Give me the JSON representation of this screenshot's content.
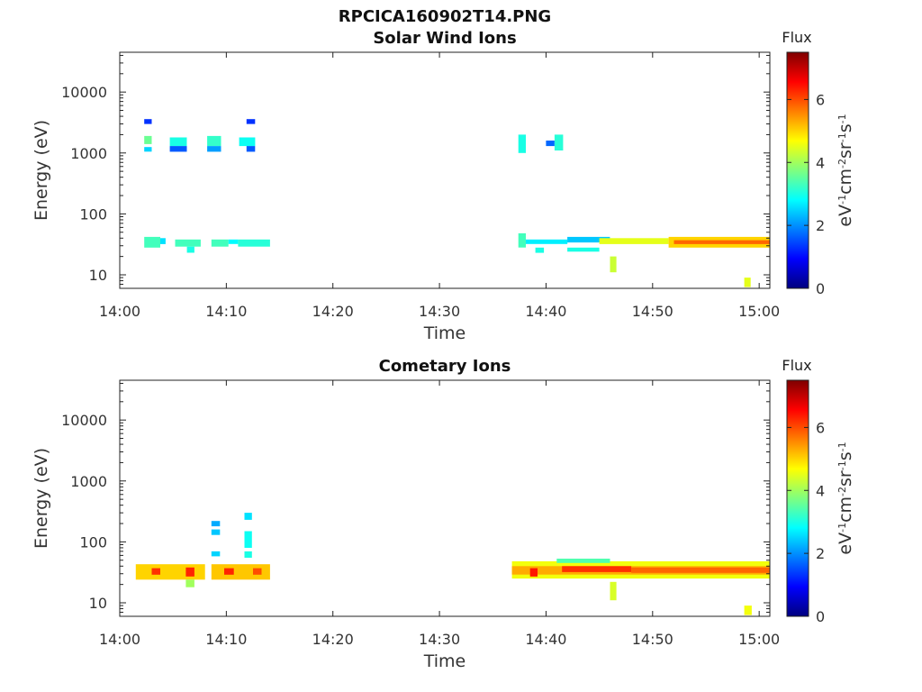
{
  "figure_title": "RPCICA160902T14.PNG",
  "colormap": [
    "#00007f",
    "#0000ff",
    "#007fff",
    "#00ffff",
    "#7fff7f",
    "#ffff00",
    "#ff7f00",
    "#ff0000",
    "#7f0000"
  ],
  "chart_data": [
    {
      "type": "heatmap",
      "title": "Solar Wind Ions",
      "xlabel": "Time",
      "ylabel": "Energy (eV)",
      "x_ticks": [
        "14:00",
        "14:10",
        "14:20",
        "14:30",
        "14:40",
        "14:50",
        "15:00"
      ],
      "x_range_minutes": [
        0,
        61
      ],
      "y_scale": "log",
      "y_ticks": [
        "10",
        "100",
        "1000",
        "10000"
      ],
      "y_range": [
        6,
        45000
      ],
      "colorbar": {
        "title": "Flux",
        "label": "eV-1cm-2sr-1s-1",
        "ticks": [
          "0",
          "2",
          "4",
          "6"
        ],
        "range": [
          0,
          7.5
        ]
      },
      "cells": [
        {
          "t0": 2.3,
          "t1": 3.0,
          "e0": 3000,
          "e1": 3600,
          "v": 1.3
        },
        {
          "t0": 2.3,
          "t1": 3.0,
          "e0": 1400,
          "e1": 1900,
          "v": 3.6
        },
        {
          "t0": 2.3,
          "t1": 3.0,
          "e0": 1050,
          "e1": 1250,
          "v": 2.5
        },
        {
          "t0": 4.7,
          "t1": 6.3,
          "e0": 1300,
          "e1": 1800,
          "v": 3.0
        },
        {
          "t0": 4.7,
          "t1": 6.3,
          "e0": 1050,
          "e1": 1300,
          "v": 1.6
        },
        {
          "t0": 8.2,
          "t1": 9.5,
          "e0": 1300,
          "e1": 1900,
          "v": 3.2
        },
        {
          "t0": 8.2,
          "t1": 9.5,
          "e0": 1050,
          "e1": 1300,
          "v": 2.1
        },
        {
          "t0": 11.2,
          "t1": 12.7,
          "e0": 1300,
          "e1": 1800,
          "v": 2.9
        },
        {
          "t0": 11.9,
          "t1": 12.7,
          "e0": 3000,
          "e1": 3600,
          "v": 1.3
        },
        {
          "t0": 11.9,
          "t1": 12.7,
          "e0": 1050,
          "e1": 1300,
          "v": 1.6
        },
        {
          "t0": 2.3,
          "t1": 3.8,
          "e0": 28,
          "e1": 42,
          "v": 3.3
        },
        {
          "t0": 3.8,
          "t1": 4.3,
          "e0": 32,
          "e1": 40,
          "v": 2.6
        },
        {
          "t0": 5.2,
          "t1": 7.6,
          "e0": 29,
          "e1": 38,
          "v": 3.3
        },
        {
          "t0": 6.3,
          "t1": 7.0,
          "e0": 23,
          "e1": 29,
          "v": 3.0
        },
        {
          "t0": 8.6,
          "t1": 10.2,
          "e0": 29,
          "e1": 38,
          "v": 3.3
        },
        {
          "t0": 10.2,
          "t1": 11.1,
          "e0": 32,
          "e1": 38,
          "v": 2.8
        },
        {
          "t0": 11.1,
          "t1": 14.1,
          "e0": 29,
          "e1": 38,
          "v": 3.1
        },
        {
          "t0": 37.4,
          "t1": 38.1,
          "e0": 1000,
          "e1": 2000,
          "v": 3.0
        },
        {
          "t0": 40.0,
          "t1": 40.8,
          "e0": 1300,
          "e1": 1600,
          "v": 1.7
        },
        {
          "t0": 40.8,
          "t1": 41.6,
          "e0": 1100,
          "e1": 2000,
          "v": 3.1
        },
        {
          "t0": 37.4,
          "t1": 38.1,
          "e0": 28,
          "e1": 48,
          "v": 3.3
        },
        {
          "t0": 38.1,
          "t1": 42.0,
          "e0": 32,
          "e1": 38,
          "v": 2.7
        },
        {
          "t0": 39.0,
          "t1": 39.8,
          "e0": 23,
          "e1": 28,
          "v": 3.0
        },
        {
          "t0": 42.0,
          "t1": 46.0,
          "e0": 34,
          "e1": 42,
          "v": 2.4
        },
        {
          "t0": 42.0,
          "t1": 45.0,
          "e0": 24,
          "e1": 28,
          "v": 3.0
        },
        {
          "t0": 45.0,
          "t1": 51.5,
          "e0": 32,
          "e1": 40,
          "v": 4.5
        },
        {
          "t0": 46.0,
          "t1": 46.6,
          "e0": 11,
          "e1": 20,
          "v": 4.3
        },
        {
          "t0": 51.5,
          "t1": 61.0,
          "e0": 28,
          "e1": 42,
          "v": 5.0
        },
        {
          "t0": 52.0,
          "t1": 61.0,
          "e0": 32,
          "e1": 37,
          "v": 5.8
        },
        {
          "t0": 58.6,
          "t1": 59.2,
          "e0": 6.3,
          "e1": 9,
          "v": 4.5
        }
      ]
    },
    {
      "type": "heatmap",
      "title": "Cometary Ions",
      "xlabel": "Time",
      "ylabel": "Energy (eV)",
      "x_ticks": [
        "14:00",
        "14:10",
        "14:20",
        "14:30",
        "14:40",
        "14:50",
        "15:00"
      ],
      "x_range_minutes": [
        0,
        61
      ],
      "y_scale": "log",
      "y_ticks": [
        "10",
        "100",
        "1000",
        "10000"
      ],
      "y_range": [
        6,
        45000
      ],
      "colorbar": {
        "title": "Flux",
        "label": "eV-1cm-2sr-1s-1",
        "ticks": [
          "0",
          "2",
          "4",
          "6"
        ],
        "range": [
          0,
          7.5
        ]
      },
      "cells": [
        {
          "t0": 1.5,
          "t1": 8.0,
          "e0": 24,
          "e1": 43,
          "v": 5.0
        },
        {
          "t0": 3.0,
          "t1": 3.8,
          "e0": 29,
          "e1": 37,
          "v": 6.2
        },
        {
          "t0": 6.2,
          "t1": 7.0,
          "e0": 27,
          "e1": 38,
          "v": 6.3
        },
        {
          "t0": 6.2,
          "t1": 7.0,
          "e0": 18,
          "e1": 24,
          "v": 4.0
        },
        {
          "t0": 8.6,
          "t1": 14.1,
          "e0": 24,
          "e1": 43,
          "v": 5.1
        },
        {
          "t0": 9.8,
          "t1": 10.7,
          "e0": 29,
          "e1": 37,
          "v": 6.3
        },
        {
          "t0": 12.5,
          "t1": 13.3,
          "e0": 29,
          "e1": 37,
          "v": 6.0
        },
        {
          "t0": 8.6,
          "t1": 9.4,
          "e0": 180,
          "e1": 220,
          "v": 2.2
        },
        {
          "t0": 8.6,
          "t1": 9.4,
          "e0": 130,
          "e1": 160,
          "v": 2.4
        },
        {
          "t0": 8.6,
          "t1": 9.4,
          "e0": 58,
          "e1": 70,
          "v": 2.5
        },
        {
          "t0": 11.7,
          "t1": 12.4,
          "e0": 230,
          "e1": 300,
          "v": 2.6
        },
        {
          "t0": 11.7,
          "t1": 12.4,
          "e0": 80,
          "e1": 150,
          "v": 2.9
        },
        {
          "t0": 11.7,
          "t1": 12.4,
          "e0": 55,
          "e1": 70,
          "v": 3.0
        },
        {
          "t0": 36.8,
          "t1": 61.0,
          "e0": 25,
          "e1": 48,
          "v": 4.6
        },
        {
          "t0": 36.8,
          "t1": 61.0,
          "e0": 29,
          "e1": 40,
          "v": 5.3
        },
        {
          "t0": 38.5,
          "t1": 39.2,
          "e0": 27,
          "e1": 37,
          "v": 6.4
        },
        {
          "t0": 41.5,
          "t1": 48.0,
          "e0": 32,
          "e1": 40,
          "v": 6.2
        },
        {
          "t0": 41.0,
          "t1": 46.0,
          "e0": 45,
          "e1": 53,
          "v": 3.4
        },
        {
          "t0": 46.0,
          "t1": 46.6,
          "e0": 11,
          "e1": 22,
          "v": 4.4
        },
        {
          "t0": 48.0,
          "t1": 61.0,
          "e0": 31,
          "e1": 38,
          "v": 5.8
        },
        {
          "t0": 58.6,
          "t1": 59.3,
          "e0": 6.3,
          "e1": 9,
          "v": 4.6
        }
      ]
    }
  ]
}
